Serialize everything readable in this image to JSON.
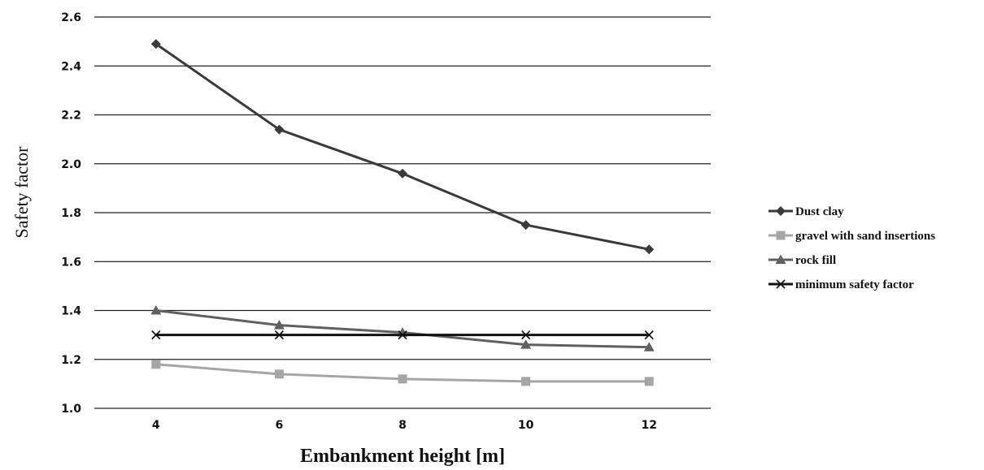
{
  "chart_data": {
    "type": "line",
    "title": "",
    "xlabel": "Embankment height [m]",
    "ylabel": "Safety factor",
    "categories": [
      "4",
      "6",
      "8",
      "10",
      "12"
    ],
    "ylim": [
      1.0,
      2.6
    ],
    "yticks": [
      "1.0",
      "1.2",
      "1.4",
      "1.6",
      "1.8",
      "2.0",
      "2.2",
      "2.4",
      "2.6"
    ],
    "grid": "horizontal",
    "legend_position": "right",
    "series": [
      {
        "name": "Dust clay",
        "values": [
          2.49,
          2.14,
          1.96,
          1.75,
          1.65
        ],
        "color": "#3a3a3a",
        "marker": "diamond"
      },
      {
        "name": "gravel with sand insertions",
        "values": [
          1.18,
          1.14,
          1.12,
          1.11,
          1.11
        ],
        "color": "#a6a6a6",
        "marker": "square"
      },
      {
        "name": "rock fill",
        "values": [
          1.4,
          1.34,
          1.31,
          1.26,
          1.25
        ],
        "color": "#606060",
        "marker": "triangle"
      },
      {
        "name": "minimum safety factor",
        "values": [
          1.3,
          1.3,
          1.3,
          1.3,
          1.3
        ],
        "color": "#111111",
        "marker": "x"
      }
    ]
  }
}
